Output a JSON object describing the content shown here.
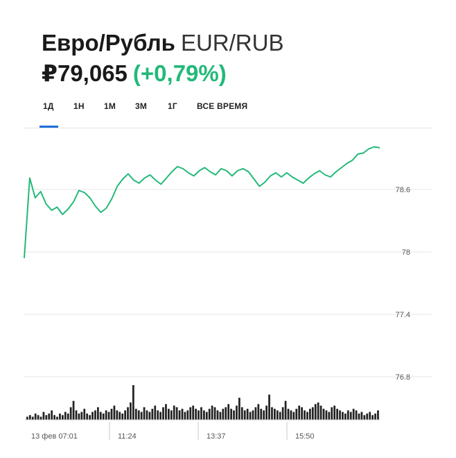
{
  "header": {
    "name": "Евро/Рубль",
    "ticker": "EUR/RUB",
    "price": "₽79,065",
    "change": "(+0,79%)"
  },
  "colors": {
    "accent": "#23b978",
    "tab_active": "#1e6fd9",
    "grid": "#e6e6e6",
    "volume": "#222222"
  },
  "tabs": [
    {
      "label": "1Д",
      "active": true
    },
    {
      "label": "1Н",
      "active": false
    },
    {
      "label": "1М",
      "active": false
    },
    {
      "label": "3М",
      "active": false
    },
    {
      "label": "1Г",
      "active": false
    },
    {
      "label": "ВСЕ ВРЕМЯ",
      "active": false
    }
  ],
  "chart_data": {
    "type": "line",
    "title": "",
    "xlabel": "",
    "ylabel": "",
    "ylim": [
      76.6,
      79.2
    ],
    "y_ticks": [
      "78.6",
      "78",
      "77.4",
      "76.8"
    ],
    "y_tick_values": [
      78.6,
      78.0,
      77.4,
      76.8
    ],
    "x_tick_labels": [
      "13 фев 07:01",
      "11:24",
      "13:37",
      "15:50"
    ],
    "grid": true,
    "series": [
      {
        "values": [
          77.94,
          78.71,
          78.52,
          78.58,
          78.46,
          78.4,
          78.43,
          78.36,
          78.41,
          78.48,
          78.59,
          78.57,
          78.52,
          78.44,
          78.38,
          78.42,
          78.51,
          78.63,
          78.7,
          78.75,
          78.69,
          78.66,
          78.71,
          78.74,
          78.69,
          78.65,
          78.71,
          78.77,
          78.82,
          78.8,
          78.76,
          78.73,
          78.78,
          78.81,
          78.77,
          78.74,
          78.8,
          78.78,
          78.73,
          78.78,
          78.8,
          78.77,
          78.7,
          78.63,
          78.67,
          78.73,
          78.76,
          78.72,
          78.76,
          78.72,
          78.69,
          78.66,
          78.71,
          78.75,
          78.78,
          78.74,
          78.72,
          78.77,
          78.81,
          78.85,
          78.88,
          78.94,
          78.95,
          78.99,
          79.01,
          79.0
        ]
      }
    ],
    "volume": [
      2,
      3,
      2,
      4,
      3,
      2,
      5,
      3,
      4,
      6,
      3,
      2,
      4,
      3,
      5,
      4,
      8,
      12,
      6,
      4,
      5,
      7,
      4,
      3,
      5,
      6,
      8,
      5,
      4,
      6,
      5,
      7,
      9,
      6,
      5,
      4,
      6,
      8,
      11,
      22,
      7,
      6,
      5,
      8,
      6,
      5,
      7,
      9,
      6,
      5,
      8,
      10,
      7,
      6,
      9,
      8,
      6,
      7,
      5,
      6,
      8,
      9,
      7,
      6,
      8,
      6,
      5,
      7,
      9,
      8,
      6,
      5,
      7,
      8,
      10,
      7,
      6,
      9,
      14,
      8,
      6,
      7,
      5,
      6,
      8,
      10,
      7,
      6,
      9,
      16,
      8,
      7,
      6,
      5,
      8,
      12,
      7,
      6,
      5,
      7,
      9,
      8,
      6,
      5,
      7,
      8,
      10,
      11,
      9,
      7,
      6,
      5,
      8,
      9,
      7,
      6,
      5,
      4,
      6,
      5,
      7,
      6,
      4,
      5,
      3,
      4,
      5,
      3,
      4,
      6
    ]
  }
}
